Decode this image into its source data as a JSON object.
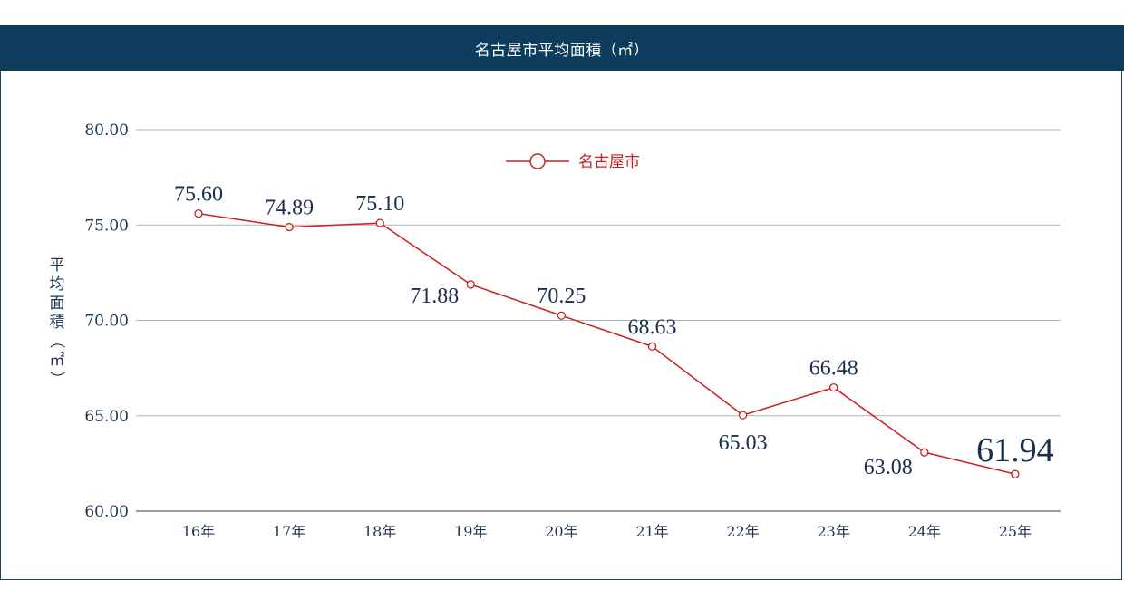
{
  "header": {
    "title": "名古屋市平均面積（㎡）"
  },
  "colors": {
    "header_bg": "#0d3c5c",
    "series": "#cc1f1f",
    "grid": "#a9b6c2",
    "text": "#1e3350"
  },
  "chart_data": {
    "type": "line",
    "title": "名古屋市平均面積（㎡）",
    "ylabel": "平均面積（㎡）",
    "xlabel": "",
    "categories": [
      "16年",
      "17年",
      "18年",
      "19年",
      "20年",
      "21年",
      "22年",
      "23年",
      "24年",
      "25年"
    ],
    "series": [
      {
        "name": "名古屋市",
        "values": [
          75.6,
          74.89,
          75.1,
          71.88,
          70.25,
          68.63,
          65.03,
          66.48,
          63.08,
          61.94
        ]
      }
    ],
    "data_labels": [
      "75.60",
      "74.89",
      "75.10",
      "71.88",
      "70.25",
      "68.63",
      "65.03",
      "66.48",
      "63.08",
      "61.94"
    ],
    "yticks": [
      "80.00",
      "75.00",
      "70.00",
      "65.00",
      "60.00"
    ],
    "ylim": [
      60,
      80
    ],
    "grid": true,
    "legend": "top-center",
    "markers": "hollow-circle"
  }
}
